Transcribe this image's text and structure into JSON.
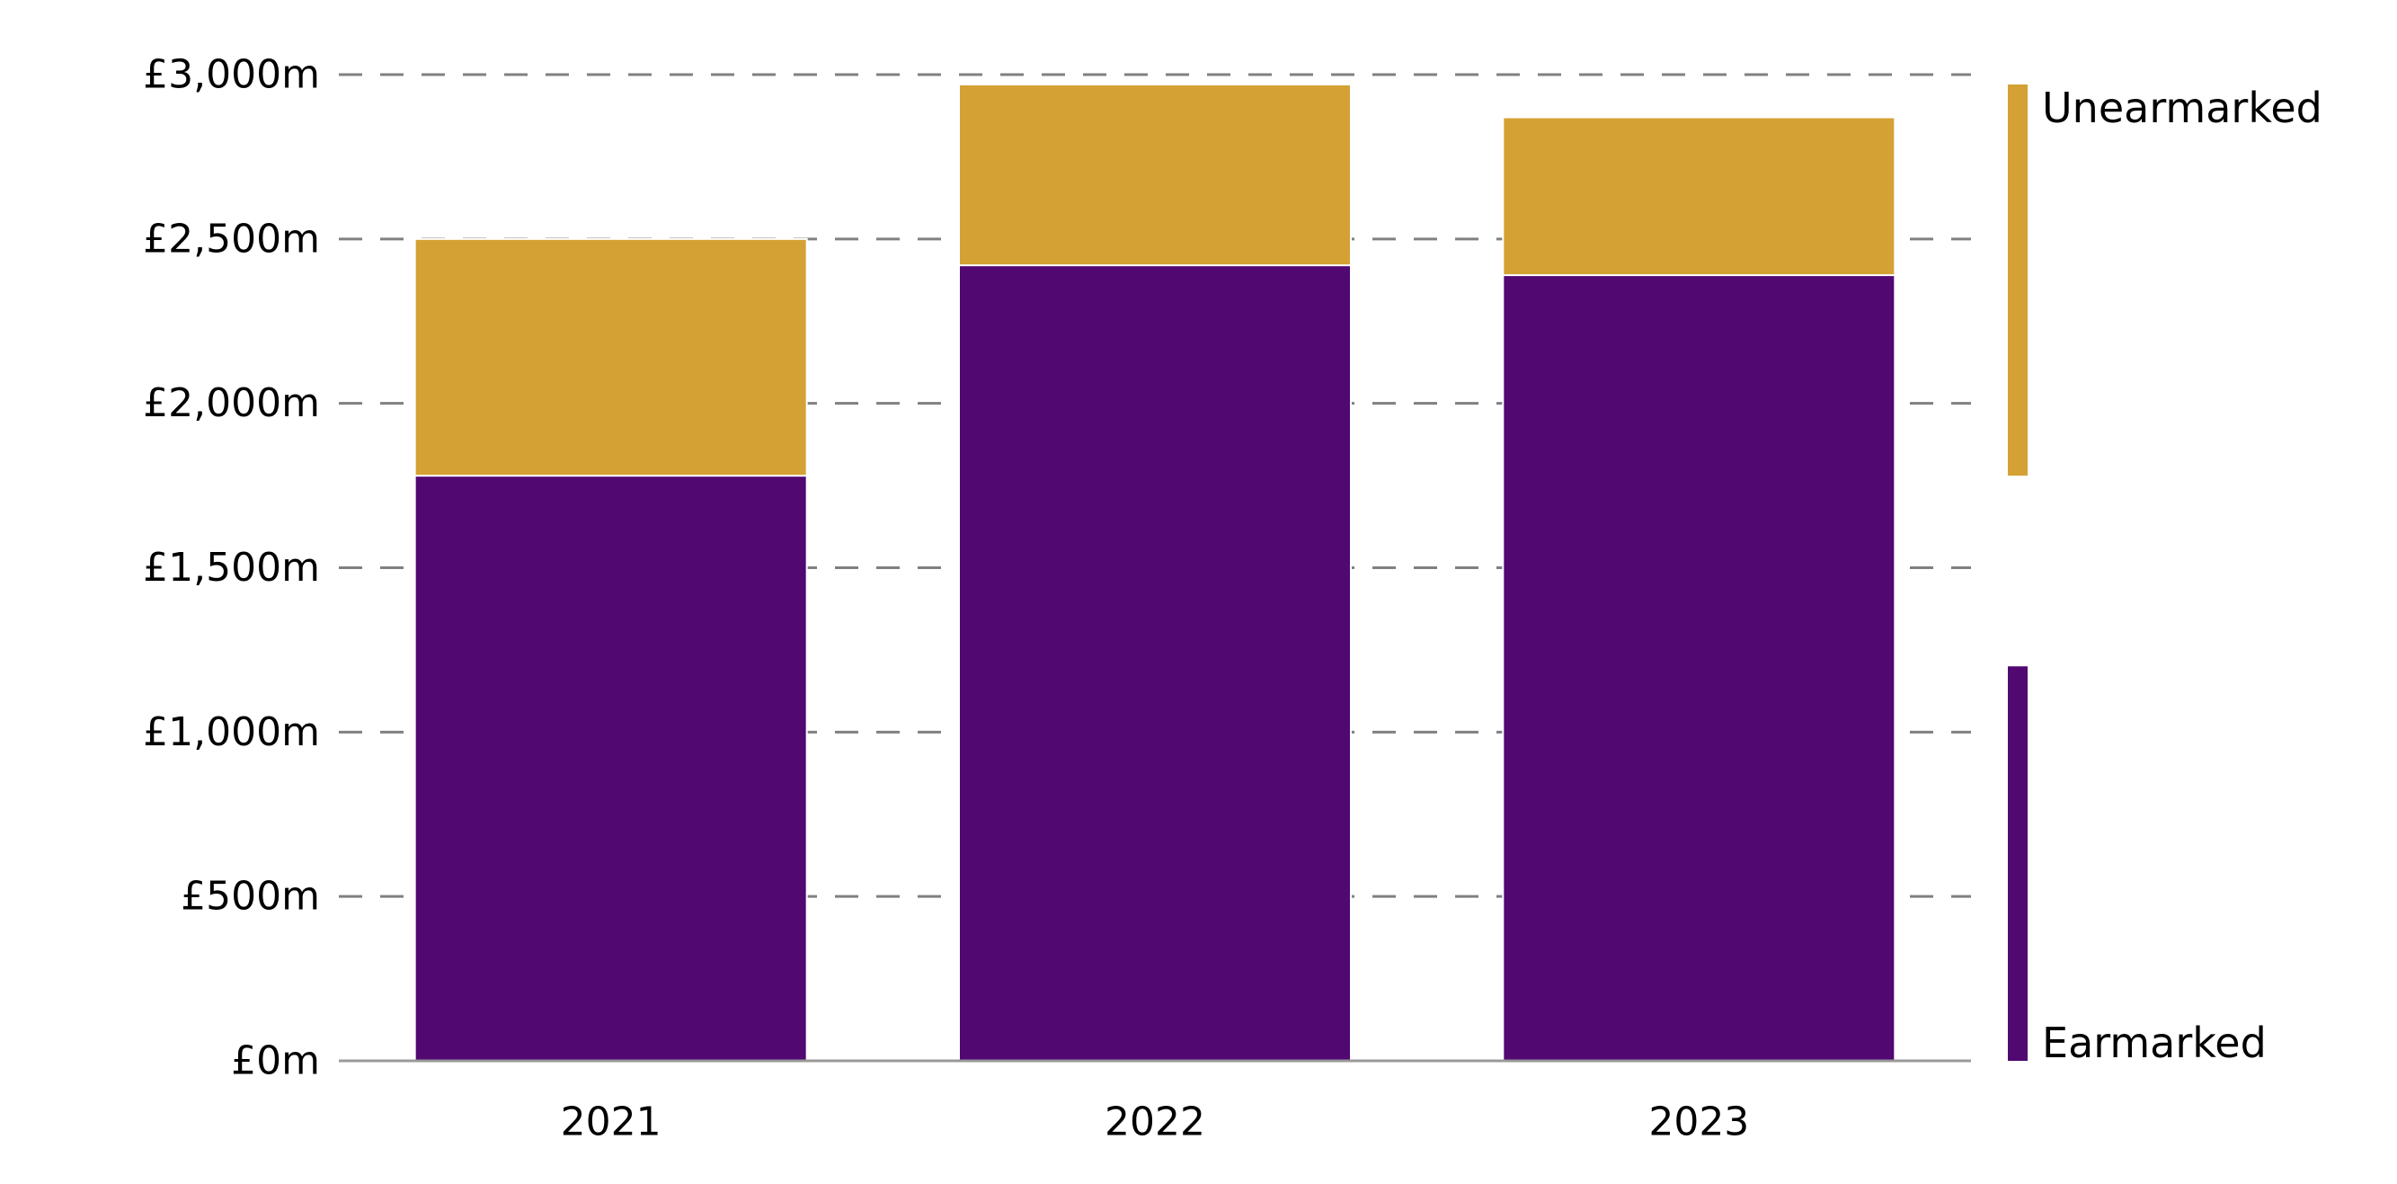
{
  "chart_data": {
    "type": "bar",
    "stacked": true,
    "categories": [
      "2021",
      "2022",
      "2023"
    ],
    "series": [
      {
        "name": "Earmarked",
        "values": [
          1780,
          2420,
          2390
        ],
        "color": "#510871"
      },
      {
        "name": "Unearmarked",
        "values": [
          720,
          550,
          480
        ],
        "color": "#D4A134"
      }
    ],
    "ylim": [
      0,
      3000
    ],
    "y_ticks": [
      {
        "value": 0,
        "label": "£0m"
      },
      {
        "value": 500,
        "label": "£500m"
      },
      {
        "value": 1000,
        "label": "£1,000m"
      },
      {
        "value": 1500,
        "label": "£1,500m"
      },
      {
        "value": 2000,
        "label": "£2,000m"
      },
      {
        "value": 2500,
        "label": "£2,500m"
      },
      {
        "value": 3000,
        "label": "£3,000m"
      }
    ],
    "grid": true,
    "legend_position": "right",
    "title": "",
    "xlabel": "",
    "ylabel": "",
    "colors": {
      "grid": "#808080",
      "axis": "#999999"
    }
  }
}
